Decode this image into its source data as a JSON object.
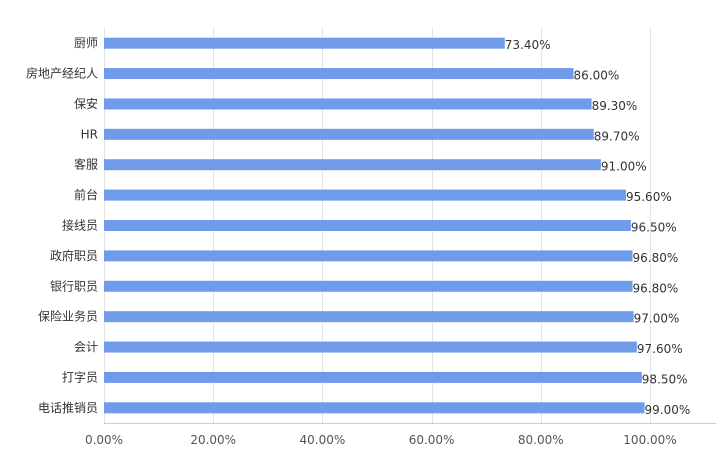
{
  "chart_data": {
    "type": "bar",
    "orientation": "horizontal",
    "categories": [
      "厨师",
      "房地产经纪人",
      "保安",
      "HR",
      "客服",
      "前台",
      "接线员",
      "政府职员",
      "银行职员",
      "保险业务员",
      "会计",
      "打字员",
      "电话推销员"
    ],
    "values": [
      73.4,
      86.0,
      89.3,
      89.7,
      91.0,
      95.6,
      96.5,
      96.8,
      96.8,
      97.0,
      97.6,
      98.5,
      99.0
    ],
    "value_labels": [
      "73.40%",
      "86.00%",
      "89.30%",
      "89.70%",
      "91.00%",
      "95.60%",
      "96.50%",
      "96.80%",
      "96.80%",
      "97.00%",
      "97.60%",
      "98.50%",
      "99.00%"
    ],
    "xlim": [
      0,
      120
    ],
    "x_ticks": [
      0,
      20,
      40,
      60,
      80,
      100,
      120
    ],
    "x_tick_labels": [
      "0.00%",
      "20.00%",
      "40.00%",
      "60.00%",
      "80.00%",
      "100.00%",
      ""
    ],
    "grid": true,
    "bar_color": "#6f9bea",
    "title": "",
    "xlabel": "",
    "ylabel": ""
  }
}
